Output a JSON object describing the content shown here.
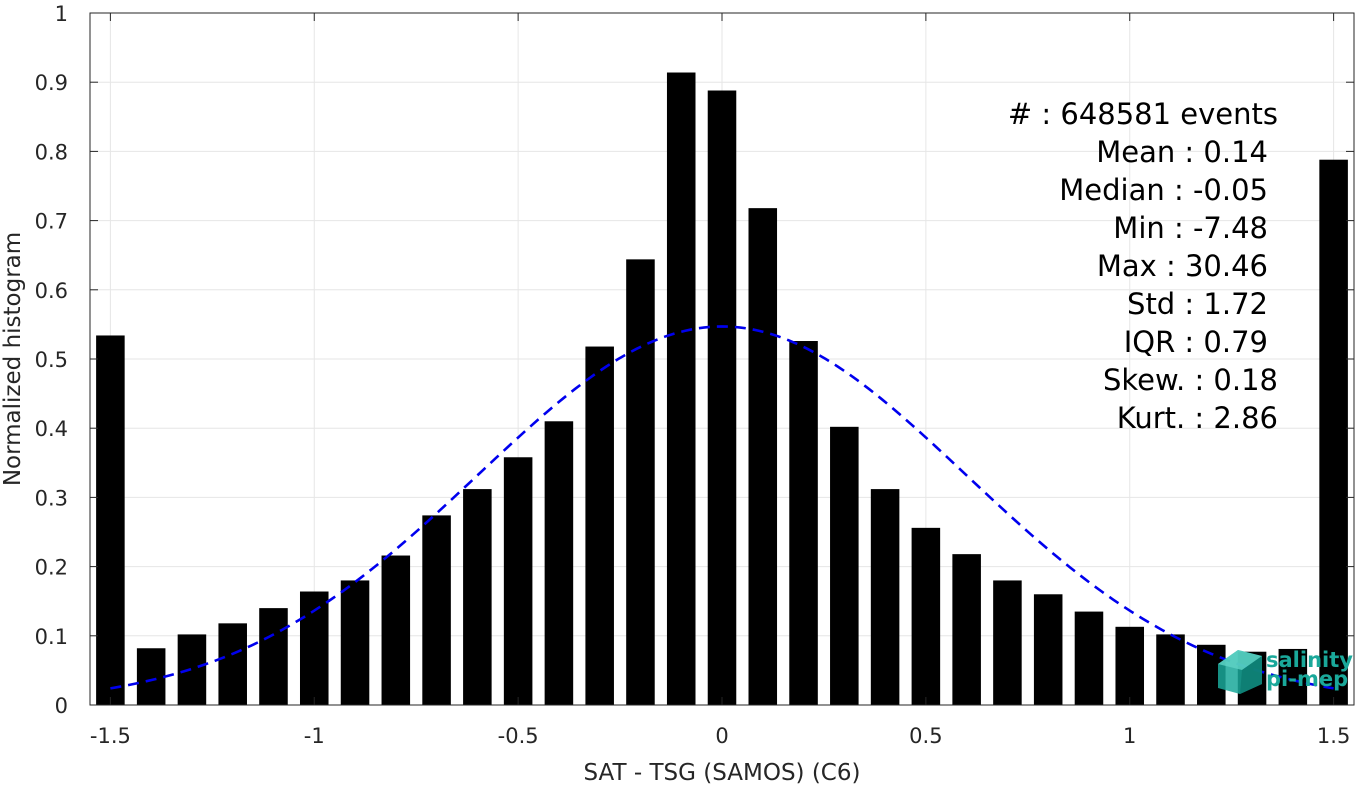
{
  "chart_data": {
    "type": "bar",
    "xlabel": "SAT - TSG (SAMOS) (C6)",
    "ylabel": "Normalized histogram",
    "xlim": [
      -1.55,
      1.55
    ],
    "ylim": [
      0,
      1
    ],
    "grid": true,
    "xticks": [
      -1.5,
      -1,
      -0.5,
      0,
      0.5,
      1,
      1.5
    ],
    "xtick_labels": [
      "-1.5",
      "-1",
      "-0.5",
      "0",
      "0.5",
      "1",
      "1.5"
    ],
    "yticks": [
      0,
      0.1,
      0.2,
      0.3,
      0.4,
      0.5,
      0.6,
      0.7,
      0.8,
      0.9,
      1
    ],
    "ytick_labels": [
      "0",
      "0.1",
      "0.2",
      "0.3",
      "0.4",
      "0.5",
      "0.6",
      "0.7",
      "0.8",
      "0.9",
      "1"
    ],
    "bar_color": "#000000",
    "x": [
      -1.5,
      -1.4,
      -1.3,
      -1.2,
      -1.1,
      -1.0,
      -0.9,
      -0.8,
      -0.7,
      -0.6,
      -0.5,
      -0.4,
      -0.3,
      -0.2,
      -0.1,
      0.0,
      0.1,
      0.2,
      0.3,
      0.4,
      0.5,
      0.6,
      0.7,
      0.8,
      0.9,
      1.0,
      1.1,
      1.2,
      1.3,
      1.4,
      1.5
    ],
    "values": [
      0.534,
      0.082,
      0.102,
      0.118,
      0.14,
      0.164,
      0.18,
      0.216,
      0.274,
      0.312,
      0.358,
      0.41,
      0.518,
      0.644,
      0.914,
      0.888,
      0.718,
      0.526,
      0.402,
      0.312,
      0.256,
      0.218,
      0.18,
      0.16,
      0.135,
      0.113,
      0.102,
      0.087,
      0.077,
      0.081,
      0.788
    ],
    "fit": {
      "type": "gaussian",
      "style": "dashed",
      "color": "#0000ee",
      "mean": 0.0,
      "std": 0.6,
      "peak": 0.547,
      "x_range": [
        -1.5,
        1.5
      ]
    },
    "annotations": [
      "#  : 648581 events",
      "Mean : 0.14",
      "Median : -0.05",
      "Min : -7.48",
      "Max : 30.46",
      "Std : 1.72",
      "IQR : 0.79",
      "Skew. : 0.18",
      "Kurt. : 2.86"
    ]
  },
  "logo": {
    "text_line1": "salinity",
    "text_line2": "pi-mep",
    "color": "#1aa89a"
  }
}
